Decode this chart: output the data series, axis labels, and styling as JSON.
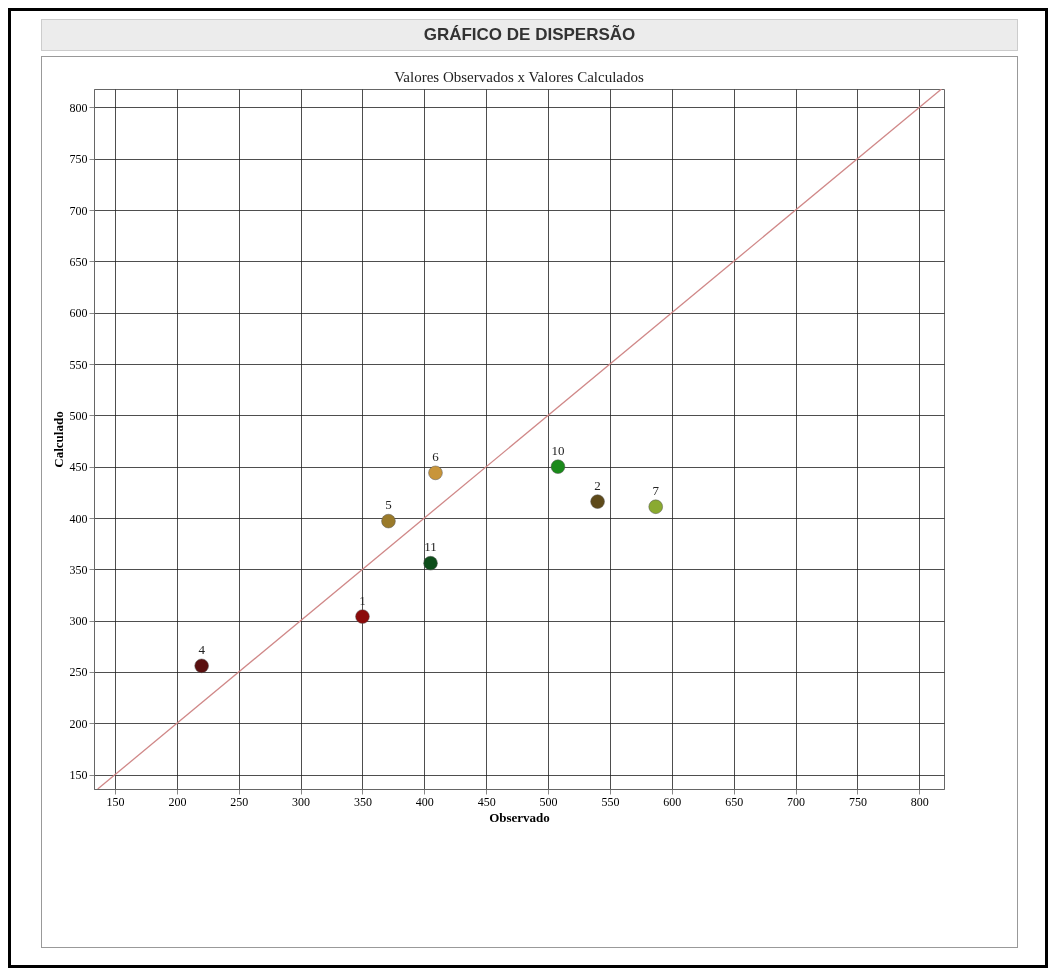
{
  "chart_data": {
    "type": "scatter",
    "title": "GRÁFICO DE DISPERSÃO",
    "subtitle": "Valores Observados x Valores Calculados",
    "xlabel": "Observado",
    "ylabel": "Calculado",
    "xlim": [
      133,
      820
    ],
    "ylim": [
      136,
      818
    ],
    "xticks": [
      150,
      200,
      250,
      300,
      350,
      400,
      450,
      500,
      550,
      600,
      650,
      700,
      750,
      800
    ],
    "yticks": [
      150,
      200,
      250,
      300,
      350,
      400,
      450,
      500,
      550,
      600,
      650,
      700,
      750,
      800
    ],
    "grid": true,
    "series": [
      {
        "type": "line",
        "color": "#d08888",
        "x": [
          136,
          818
        ],
        "values": [
          136,
          818
        ]
      },
      {
        "marker": "circle",
        "x": [
          220,
          350,
          371,
          409,
          405,
          508,
          540,
          587
        ],
        "values": [
          256,
          304,
          397,
          444,
          356,
          450,
          416,
          411
        ],
        "colors": [
          "#5a1010",
          "#8b0a0a",
          "#9a7a2a",
          "#c8953a",
          "#0d4d1a",
          "#1a8a1a",
          "#5e4a1a",
          "#8aaa30"
        ]
      }
    ],
    "annotations": [
      {
        "text": "4",
        "x": 220,
        "y": 256
      },
      {
        "text": "1",
        "x": 350,
        "y": 304
      },
      {
        "text": "5",
        "x": 371,
        "y": 397
      },
      {
        "text": "6",
        "x": 409,
        "y": 444
      },
      {
        "text": "11",
        "x": 405,
        "y": 356
      },
      {
        "text": "10",
        "x": 508,
        "y": 450
      },
      {
        "text": "2",
        "x": 540,
        "y": 416
      },
      {
        "text": "7",
        "x": 587,
        "y": 411
      }
    ]
  }
}
